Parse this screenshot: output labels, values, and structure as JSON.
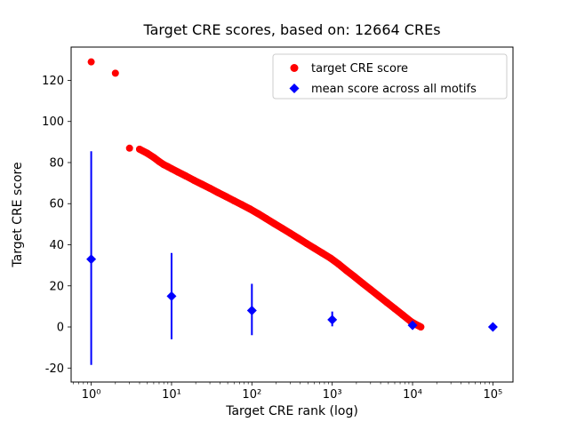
{
  "chart_data": {
    "type": "scatter",
    "title": "Target CRE scores, based on: 12664 CREs",
    "xlabel": "Target CRE rank (log)",
    "ylabel": "Target CRE score",
    "x_scale": "log",
    "xlog_lim": [
      -0.25,
      5.25
    ],
    "ylim": [
      -26.8,
      136.2
    ],
    "x_ticks": [
      1,
      10,
      100,
      1000,
      10000,
      100000
    ],
    "x_tick_labels": [
      "10⁰",
      "10¹",
      "10²",
      "10³",
      "10⁴",
      "10⁵"
    ],
    "y_ticks": [
      -20,
      0,
      20,
      40,
      60,
      80,
      100,
      120
    ],
    "grid": false,
    "legend_position": "upper right",
    "series": [
      {
        "name": "target CRE score",
        "type": "scatter",
        "marker": "circle",
        "color": "#ff0000",
        "points": [
          [
            1,
            129
          ],
          [
            2,
            123.5
          ],
          [
            3,
            87
          ],
          [
            4,
            86.5
          ],
          [
            5,
            84.5
          ],
          [
            6,
            82.5
          ],
          [
            7,
            80.5
          ],
          [
            8,
            79
          ],
          [
            9,
            78
          ],
          [
            10,
            77
          ],
          [
            12,
            75.4
          ],
          [
            15,
            73.5
          ],
          [
            19,
            71.4
          ],
          [
            24,
            69.4
          ],
          [
            30,
            67.5
          ],
          [
            38,
            65.4
          ],
          [
            48,
            63.4
          ],
          [
            60,
            61.4
          ],
          [
            75,
            59.5
          ],
          [
            95,
            57.4
          ],
          [
            120,
            55.1
          ],
          [
            150,
            52.8
          ],
          [
            190,
            50.3
          ],
          [
            240,
            47.9
          ],
          [
            300,
            45.6
          ],
          [
            380,
            43.1
          ],
          [
            480,
            40.6
          ],
          [
            600,
            38.3
          ],
          [
            750,
            36
          ],
          [
            950,
            33.5
          ],
          [
            1200,
            30.6
          ],
          [
            1500,
            27.5
          ],
          [
            1900,
            24.4
          ],
          [
            2400,
            21.2
          ],
          [
            3000,
            18.2
          ],
          [
            3800,
            15
          ],
          [
            4800,
            11.9
          ],
          [
            6000,
            8.9
          ],
          [
            7500,
            5.9
          ],
          [
            9500,
            2.7
          ],
          [
            11000,
            1.2
          ],
          [
            12000,
            0.5
          ],
          [
            12664,
            0
          ]
        ]
      },
      {
        "name": "mean score across all motifs",
        "type": "errorbar",
        "marker": "diamond",
        "color": "#0000ff",
        "points": [
          {
            "x": 1,
            "y": 33,
            "lo": -18.5,
            "hi": 85.5
          },
          {
            "x": 10,
            "y": 15,
            "lo": -6,
            "hi": 36
          },
          {
            "x": 100,
            "y": 8,
            "lo": -4,
            "hi": 21
          },
          {
            "x": 1000,
            "y": 3.5,
            "lo": 0.3,
            "hi": 7.5
          },
          {
            "x": 10000,
            "y": 0.8,
            "lo": -0.3,
            "hi": 2
          },
          {
            "x": 100000,
            "y": 0,
            "lo": 0,
            "hi": 0
          }
        ]
      }
    ]
  }
}
